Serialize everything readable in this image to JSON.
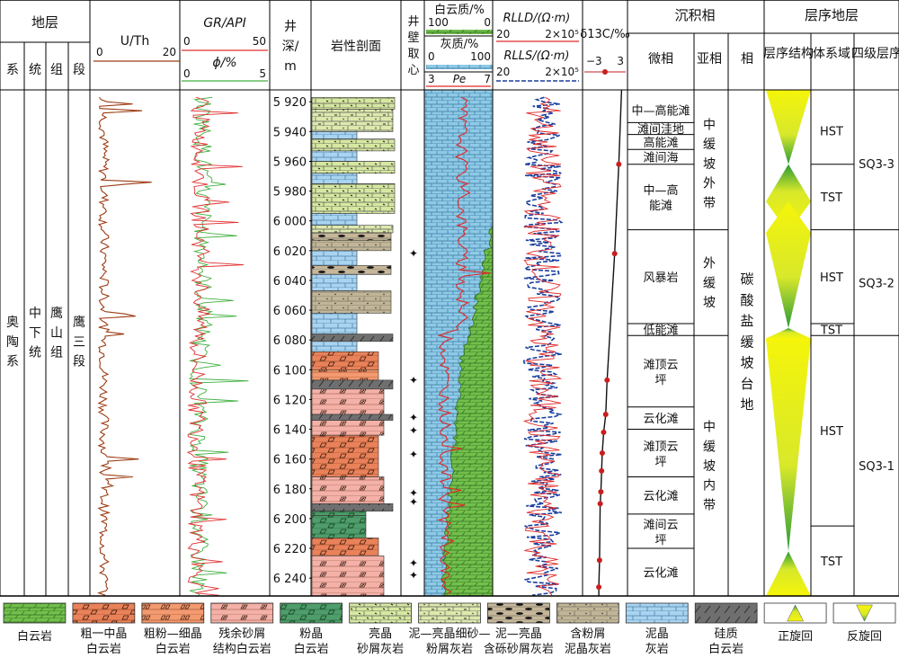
{
  "headers": {
    "strata": "地层",
    "strata_sub": [
      "系",
      "统",
      "组",
      "段"
    ],
    "uth": "U/Th",
    "uth_scale": [
      "0",
      "20"
    ],
    "gr": "GR/API",
    "gr_scale": [
      "0",
      "50"
    ],
    "phi": "ϕ/%",
    "phi_scale": [
      "0",
      "5"
    ],
    "depth": "井深/m",
    "depth_lines": [
      "井",
      "深/",
      "m"
    ],
    "lith": "岩性剖面",
    "core_lines": [
      "井",
      "壁",
      "取",
      "心"
    ],
    "dolomite": "白云质/%",
    "dolomite_scale": [
      "100",
      "0"
    ],
    "lime": "灰质/%",
    "lime_scale": [
      "0",
      "100"
    ],
    "pe": "Pe",
    "pe_scale": [
      "3",
      "7"
    ],
    "rlld": "RLLD/(Ω·m)",
    "rlls": "RLLS/(Ω·m)",
    "res_scale": [
      "20",
      "2×10⁵"
    ],
    "carbon": "δ13C/‰",
    "carbon_scale": [
      "−3",
      "3"
    ],
    "facies": "沉积相",
    "microfacies": "微相",
    "subfacies": "亚相",
    "facies_col": "相",
    "sequence": "层序地层",
    "seq_structure": "层序结构",
    "systems_tract": "体系域",
    "fourth_order": "四级层序"
  },
  "strata": {
    "system": "奥陶系",
    "series": "中下统",
    "formation": "鹰山组",
    "member": "鹰三段"
  },
  "depth_ticks": [
    5920,
    5940,
    5960,
    5980,
    6000,
    6020,
    6040,
    6060,
    6080,
    6100,
    6120,
    6140,
    6160,
    6180,
    6200,
    6220,
    6240
  ],
  "microfacies": [
    {
      "label": "中—高能滩",
      "top": 5917,
      "bottom": 5934
    },
    {
      "label": "滩间洼地",
      "top": 5934,
      "bottom": 5942
    },
    {
      "label": "高能滩",
      "top": 5942,
      "bottom": 5952
    },
    {
      "label": "滩间海",
      "top": 5952,
      "bottom": 5962
    },
    {
      "label": "中—高能滩",
      "top": 5962,
      "bottom": 6006
    },
    {
      "label": "风暴岩",
      "top": 6006,
      "bottom": 6069
    },
    {
      "label": "低能滩",
      "top": 6069,
      "bottom": 6077
    },
    {
      "label": "滩顶云坪",
      "top": 6077,
      "bottom": 6125
    },
    {
      "label": "云化滩",
      "top": 6125,
      "bottom": 6140
    },
    {
      "label": "滩顶云坪",
      "top": 6140,
      "bottom": 6172
    },
    {
      "label": "云化滩",
      "top": 6172,
      "bottom": 6197
    },
    {
      "label": "滩间云坪",
      "top": 6197,
      "bottom": 6220
    },
    {
      "label": "云化滩",
      "top": 6220,
      "bottom": 6252
    }
  ],
  "subfacies": [
    {
      "label": "中缓坡外带",
      "top": 5917,
      "bottom": 6006
    },
    {
      "label": "外缓坡",
      "top": 6006,
      "bottom": 6077
    },
    {
      "label": "中缓坡内带",
      "top": 6077,
      "bottom": 6252
    }
  ],
  "facies": {
    "label": "碳酸盐缓坡台地"
  },
  "systems_tracts": [
    {
      "label": "HST",
      "top": 5917,
      "bottom": 5962
    },
    {
      "label": "TST",
      "top": 5962,
      "bottom": 6006
    },
    {
      "label": "HST",
      "top": 6006,
      "bottom": 6069
    },
    {
      "label": "TST",
      "top": 6069,
      "bottom": 6077
    },
    {
      "label": "HST",
      "top": 6077,
      "bottom": 6205
    },
    {
      "label": "TST",
      "top": 6205,
      "bottom": 6252
    }
  ],
  "sequences": [
    {
      "label": "SQ3-3",
      "top": 5917,
      "bottom": 6006
    },
    {
      "label": "SQ3-2",
      "top": 6006,
      "bottom": 6077
    },
    {
      "label": "SQ3-1",
      "top": 6077,
      "bottom": 6252
    }
  ],
  "sidewall_core_depths": [
    6022,
    6107,
    6132,
    6141,
    6157,
    6183,
    6189,
    6230,
    6238
  ],
  "carbon_points": [
    {
      "depth": 5962,
      "value": 2.0
    },
    {
      "depth": 6022,
      "value": 1.4
    },
    {
      "depth": 6107,
      "value": 0.3
    },
    {
      "depth": 6130,
      "value": 0.1
    },
    {
      "depth": 6142,
      "value": -0.2
    },
    {
      "depth": 6156,
      "value": -0.4
    },
    {
      "depth": 6168,
      "value": -0.5
    },
    {
      "depth": 6182,
      "value": -0.6
    },
    {
      "depth": 6190,
      "value": -0.7
    },
    {
      "depth": 6228,
      "value": -0.8
    },
    {
      "depth": 6246,
      "value": -0.9
    }
  ],
  "lithology": [
    {
      "top": 5917,
      "bottom": 5925,
      "type": "grain_ls"
    },
    {
      "top": 5925,
      "bottom": 5940,
      "type": "mud_silt_ls"
    },
    {
      "top": 5940,
      "bottom": 5945,
      "type": "micrite"
    },
    {
      "top": 5945,
      "bottom": 5953,
      "type": "grain_ls"
    },
    {
      "top": 5953,
      "bottom": 5960,
      "type": "micrite"
    },
    {
      "top": 5960,
      "bottom": 5968,
      "type": "grain_ls"
    },
    {
      "top": 5968,
      "bottom": 5975,
      "type": "micrite"
    },
    {
      "top": 5975,
      "bottom": 5995,
      "type": "grain_ls"
    },
    {
      "top": 5995,
      "bottom": 6003,
      "type": "micrite"
    },
    {
      "top": 6003,
      "bottom": 6008,
      "type": "mud_silt_ls"
    },
    {
      "top": 6008,
      "bottom": 6013,
      "type": "gravel_ls"
    },
    {
      "top": 6013,
      "bottom": 6020,
      "type": "marl"
    },
    {
      "top": 6020,
      "bottom": 6030,
      "type": "micrite"
    },
    {
      "top": 6030,
      "bottom": 6036,
      "type": "gravel_ls"
    },
    {
      "top": 6036,
      "bottom": 6047,
      "type": "micrite"
    },
    {
      "top": 6047,
      "bottom": 6062,
      "type": "marl"
    },
    {
      "top": 6062,
      "bottom": 6076,
      "type": "micrite"
    },
    {
      "top": 6076,
      "bottom": 6081,
      "type": "siliceous"
    },
    {
      "top": 6081,
      "bottom": 6088,
      "type": "micrite"
    },
    {
      "top": 6088,
      "bottom": 6100,
      "type": "coarse_dol"
    },
    {
      "top": 6100,
      "bottom": 6107,
      "type": "fine_dol"
    },
    {
      "top": 6107,
      "bottom": 6113,
      "type": "siliceous"
    },
    {
      "top": 6113,
      "bottom": 6130,
      "type": "relict_dol"
    },
    {
      "top": 6130,
      "bottom": 6134,
      "type": "siliceous"
    },
    {
      "top": 6134,
      "bottom": 6144,
      "type": "relict_dol"
    },
    {
      "top": 6144,
      "bottom": 6172,
      "type": "coarse_dol"
    },
    {
      "top": 6172,
      "bottom": 6190,
      "type": "relict_dol"
    },
    {
      "top": 6190,
      "bottom": 6195,
      "type": "siliceous"
    },
    {
      "top": 6195,
      "bottom": 6198,
      "type": "powder_dol"
    },
    {
      "top": 6198,
      "bottom": 6213,
      "type": "powder_dol"
    },
    {
      "top": 6213,
      "bottom": 6225,
      "type": "coarse_dol"
    },
    {
      "top": 6225,
      "bottom": 6252,
      "type": "relict_dol"
    }
  ],
  "legend": [
    {
      "key": "dolomite",
      "label": [
        "白云岩"
      ]
    },
    {
      "key": "coarse_dol",
      "label": [
        "粗一中晶",
        "白云岩"
      ]
    },
    {
      "key": "fine_dol",
      "label": [
        "粗粉—细晶",
        "白云岩"
      ]
    },
    {
      "key": "relict_dol",
      "label": [
        "残余砂屑",
        "结构白云岩"
      ]
    },
    {
      "key": "powder_dol",
      "label": [
        "粉晶",
        "白云岩"
      ]
    },
    {
      "key": "grain_ls",
      "label": [
        "亮晶",
        "砂屑灰岩"
      ]
    },
    {
      "key": "mud_silt_ls",
      "label": [
        "泥—亮晶细砂—",
        "粉屑灰岩"
      ]
    },
    {
      "key": "gravel_ls",
      "label": [
        "泥—亮晶",
        "含砾砂屑灰岩"
      ]
    },
    {
      "key": "marl",
      "label": [
        "含粉屑",
        "泥晶灰岩"
      ]
    },
    {
      "key": "micrite",
      "label": [
        "泥晶",
        "灰岩"
      ]
    },
    {
      "key": "siliceous",
      "label": [
        "硅质",
        "白云岩"
      ]
    },
    {
      "key": "positive_cycle",
      "label": [
        "正旋回"
      ]
    },
    {
      "key": "reverse_cycle",
      "label": [
        "反旋回"
      ]
    }
  ],
  "colors": {
    "coarse_dol": "#e9825a",
    "fine_dol": "#f39a70",
    "relict_dol": "#f4b1a8",
    "powder_dol": "#4f9d6a",
    "grain_ls": "#d6e8a0",
    "mud_silt_ls": "#dde9ad",
    "gravel_ls": "#c7b79a",
    "marl": "#c2b597",
    "micrite": "#a9d4f0",
    "siliceous": "#6f6f6f",
    "dolomite": "#72bf4b",
    "lime": "#8ecae6",
    "gr_curve": "#e03030",
    "phi_curve": "#40b040",
    "uth_curve": "#9c3c14",
    "pe_curve": "#e02828",
    "rlld_curve": "#e02828",
    "rlls_curve": "#1a3f9e",
    "carbon_dot": "#c81e1e",
    "triangle_yellow": "#f5f50a",
    "triangle_green": "#2a9a3a"
  }
}
